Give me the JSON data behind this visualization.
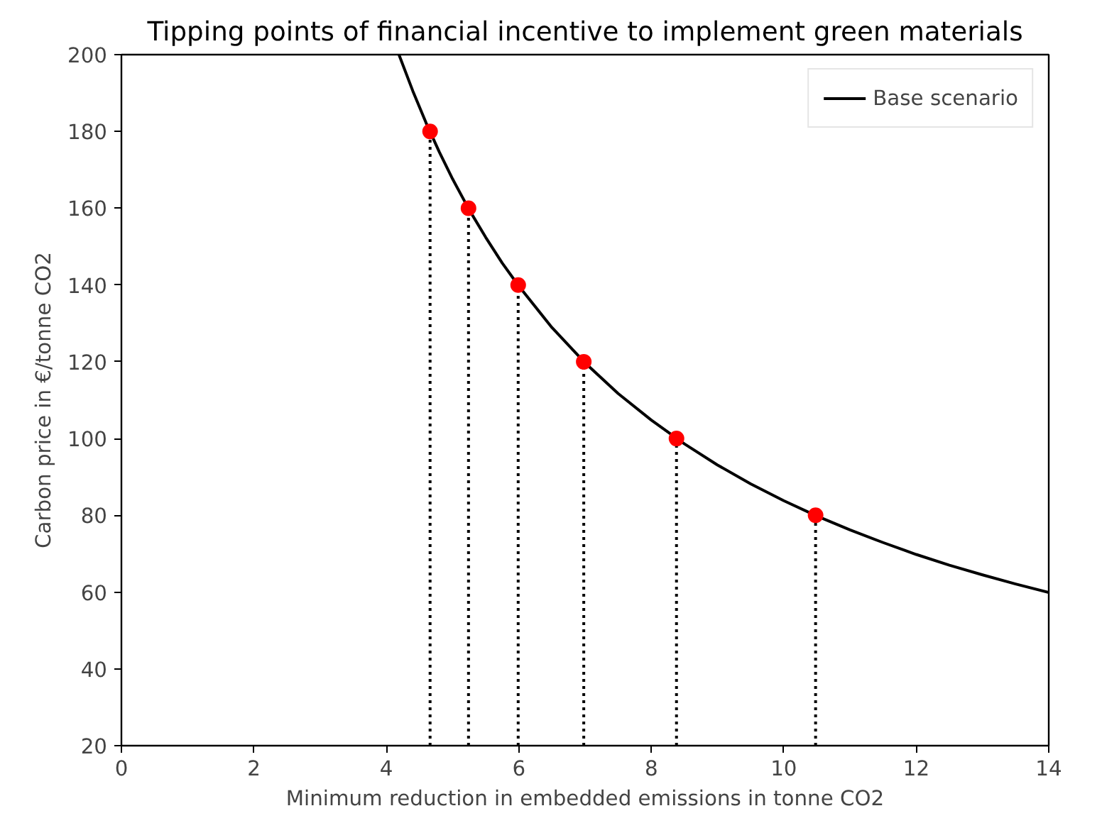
{
  "chart_data": {
    "type": "line",
    "title": "Tipping points of financial incentive to implement green materials",
    "xlabel": "Minimum reduction in embedded emissions in tonne CO2",
    "ylabel": "Carbon price in €/tonne CO2",
    "xlim": [
      0,
      14
    ],
    "xticks": [
      0,
      2,
      4,
      6,
      8,
      10,
      12,
      14
    ],
    "ylim": [
      20,
      200
    ],
    "yticks": [
      20,
      40,
      60,
      80,
      100,
      120,
      140,
      160,
      180,
      200
    ],
    "grid": false,
    "legend": "top right",
    "series": [
      {
        "name": "Base scenario",
        "color": "#000000",
        "line_style": "solid",
        "x": [
          4.19,
          4.4,
          4.6,
          4.8,
          5.0,
          5.25,
          5.5,
          5.75,
          6.0,
          6.5,
          7.0,
          7.5,
          8.0,
          8.5,
          9.0,
          9.5,
          10.0,
          10.5,
          11.0,
          11.5,
          12.0,
          12.5,
          13.0,
          13.5,
          14.0
        ],
        "values": [
          200,
          190.5,
          182.2,
          174.6,
          167.6,
          159.6,
          152.4,
          145.7,
          139.7,
          128.9,
          119.7,
          111.7,
          104.8,
          98.6,
          93.1,
          88.2,
          83.8,
          79.8,
          76.2,
          72.9,
          69.8,
          67.0,
          64.5,
          62.1,
          59.9
        ]
      },
      {
        "type": "line",
        "color": "#000000",
        "line_style": "dotted",
        "x": [
          4.66,
          4.66
        ],
        "values": [
          20,
          180
        ]
      },
      {
        "type": "line",
        "color": "#000000",
        "line_style": "dotted",
        "x": [
          5.24,
          5.24
        ],
        "values": [
          20,
          160
        ]
      },
      {
        "type": "line",
        "color": "#000000",
        "line_style": "dotted",
        "x": [
          5.99,
          5.99
        ],
        "values": [
          20,
          140
        ]
      },
      {
        "type": "line",
        "color": "#000000",
        "line_style": "dotted",
        "x": [
          6.98,
          6.98
        ],
        "values": [
          20,
          120
        ]
      },
      {
        "type": "line",
        "color": "#000000",
        "line_style": "dotted",
        "x": [
          8.38,
          8.38
        ],
        "values": [
          20,
          100
        ]
      },
      {
        "type": "line",
        "color": "#000000",
        "line_style": "dotted",
        "x": [
          10.48,
          10.48
        ],
        "values": [
          20,
          80
        ]
      },
      {
        "type": "scatter",
        "color": "#ff0000",
        "marker": "circle",
        "x": [
          4.66,
          5.24,
          5.99,
          6.98,
          8.38,
          10.48
        ],
        "values": [
          180,
          160,
          140,
          120,
          100,
          80
        ]
      }
    ]
  }
}
